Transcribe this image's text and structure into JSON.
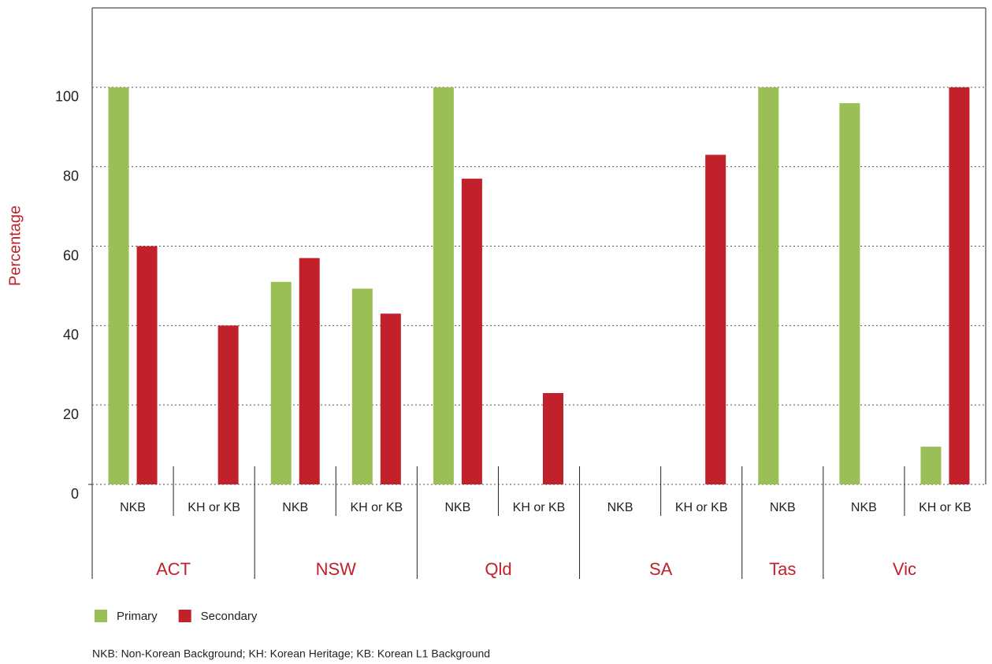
{
  "chart_data": {
    "type": "bar",
    "y_label": "Percentage",
    "groups": [
      {
        "name": "ACT",
        "categories": [
          "NKB",
          "KH or KB"
        ]
      },
      {
        "name": "NSW",
        "categories": [
          "NKB",
          "KH or KB"
        ]
      },
      {
        "name": "Qld",
        "categories": [
          "NKB",
          "KH or KB"
        ]
      },
      {
        "name": "SA",
        "categories": [
          "NKB",
          "KH or KB"
        ]
      },
      {
        "name": "Tas",
        "categories": [
          "NKB"
        ]
      },
      {
        "name": "Vic",
        "categories": [
          "NKB",
          "KH or KB"
        ]
      }
    ],
    "series": [
      {
        "name": "Primary",
        "color": "#9bbf57",
        "values": [
          100,
          null,
          51,
          49.3,
          100,
          null,
          null,
          null,
          100,
          96,
          9.5
        ]
      },
      {
        "name": "Secondary",
        "color": "#c0212a",
        "values": [
          60,
          40,
          57,
          43,
          77,
          23,
          null,
          83,
          null,
          null,
          100
        ]
      }
    ],
    "ylim": [
      0,
      120
    ],
    "yticks": [
      0,
      20,
      40,
      60,
      80,
      100
    ],
    "grid": true,
    "note": "NKB: Non-Korean Background; KH: Korean Heritage; KB: Korean L1 Background"
  }
}
